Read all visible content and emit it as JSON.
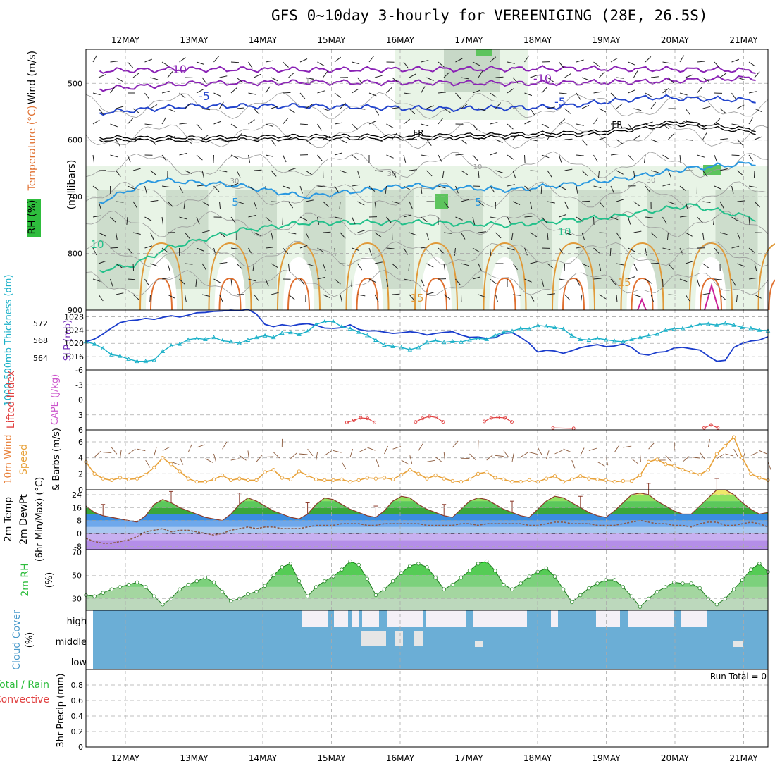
{
  "title": "GFS 0~10day 3-hourly for VEREENIGING (28E, 26.5S)",
  "dates": [
    "12MAY",
    "13MAY",
    "14MAY",
    "15MAY",
    "16MAY",
    "17MAY",
    "18MAY",
    "19MAY",
    "20MAY",
    "21MAY"
  ],
  "colors": {
    "grid": "#aaaaaa",
    "temp": "#e8803a",
    "rh": "#2ebd3d",
    "wind": "#e8a23a",
    "cape": "#cc55cc",
    "lifted": "#e04040",
    "slp": "#7733bb",
    "thick": "#1ab0c8",
    "cloud": "#6baed6",
    "precip_total": "#2ebd3d",
    "precip_conv": "#e04040"
  },
  "chart_data": [
    {
      "panel": "upper-air",
      "type": "contour",
      "ylabels": {
        "wind": "Wind (m/s)",
        "temp": "Temperature (°C)",
        "rh": "RH (%)",
        "axis": "(millibars)"
      },
      "ylim": [
        900,
        450
      ],
      "ticks": [
        900,
        800,
        700,
        600,
        500
      ],
      "isotherms": [
        {
          "label": "-10",
          "color": "#8a22b5",
          "anchors": [
            [
              0,
              478
            ],
            [
              1.3,
              475
            ],
            [
              3,
              476
            ],
            [
              5,
              475
            ],
            [
              7,
              474
            ],
            [
              9,
              476
            ],
            [
              9.6,
              478
            ]
          ]
        },
        {
          "label": "-10",
          "color": "#8a22b5",
          "anchors": [
            [
              0,
              510
            ],
            [
              1.3,
              500
            ],
            [
              3,
              498
            ],
            [
              5,
              499
            ],
            [
              6.2,
              500
            ],
            [
              8,
              497
            ],
            [
              9.6,
              490
            ]
          ]
        },
        {
          "label": "-5",
          "color": "#2244cc",
          "anchors": [
            [
              0,
              552
            ],
            [
              1.3,
              540
            ],
            [
              3,
              540
            ],
            [
              5,
              545
            ],
            [
              6.6,
              542
            ],
            [
              8,
              525
            ],
            [
              9.6,
              530
            ]
          ]
        },
        {
          "label": "FR",
          "color": "#000000",
          "anchors": [
            [
              0,
              598
            ],
            [
              1.5,
              598
            ],
            [
              3,
              595
            ],
            [
              4.5,
              595
            ],
            [
              6,
              592
            ],
            [
              7.2,
              588
            ],
            [
              8.4,
              570
            ],
            [
              9.6,
              585
            ]
          ]
        },
        {
          "label": "5",
          "color": "#2a98e0",
          "anchors": [
            [
              0,
              710
            ],
            [
              0.8,
              670
            ],
            [
              2,
              680
            ],
            [
              3,
              700
            ],
            [
              4.5,
              680
            ],
            [
              6,
              688
            ],
            [
              7.5,
              670
            ],
            [
              8.6,
              650
            ],
            [
              9.6,
              640
            ]
          ]
        },
        {
          "label": "10",
          "color": "#22c08a",
          "anchors": [
            [
              0,
              830
            ],
            [
              0.5,
              820
            ],
            [
              1,
              790
            ],
            [
              2,
              760
            ],
            [
              3,
              746
            ],
            [
              4.5,
              745
            ],
            [
              6,
              750
            ],
            [
              7.5,
              735
            ],
            [
              8.6,
              715
            ],
            [
              9.6,
              740
            ]
          ]
        }
      ],
      "labels": [
        "-10",
        "-10",
        "-5",
        "-5",
        "FR",
        "FR",
        "5",
        "5",
        "10",
        "10",
        "15",
        "15",
        "10",
        "30",
        "30",
        "10",
        "30",
        "10"
      ]
    },
    {
      "panel": "slp-thickness",
      "type": "line",
      "ylabels": {
        "left": "1000-500mb Thickness (dm)",
        "right": "SLP (mb)"
      },
      "thickness_ticks": [
        564,
        568,
        572
      ],
      "slp_ticks": [
        1016,
        1020,
        1024,
        1028
      ],
      "slp_ylim": [
        1012,
        1030
      ],
      "slp": [
        1020.5,
        1021.3,
        1022.8,
        1024.6,
        1026.2,
        1026.8,
        1027.0,
        1027.5,
        1027.2,
        1027.8,
        1028.3,
        1027.9,
        1028.5,
        1029.2,
        1029.3,
        1029.6,
        1029.7,
        1030.0,
        1029.8,
        1030.2,
        1028.8,
        1025.7,
        1025.0,
        1025.6,
        1025.2,
        1025.7,
        1025.9,
        1025.4,
        1024.6,
        1024.5,
        1024.7,
        1025.6,
        1024.2,
        1023.7,
        1023.8,
        1023.4,
        1023.0,
        1023.2,
        1023.5,
        1023.2,
        1022.5,
        1023.0,
        1023.3,
        1023.5,
        1022.5,
        1021.8,
        1021.9,
        1021.5,
        1021.7,
        1023.0,
        1023.2,
        1021.8,
        1020.0,
        1017.4,
        1017.9,
        1017.7,
        1017.0,
        1017.8,
        1018.7,
        1019.2,
        1019.6,
        1019.0,
        1019.2,
        1019.8,
        1018.8,
        1016.8,
        1016.5,
        1017.3,
        1017.5,
        1018.6,
        1018.8,
        1018.4,
        1018.0,
        1016.2,
        1014.6,
        1014.9,
        1018.8,
        1020.0,
        1020.7,
        1021.0,
        1022.0
      ],
      "thickness": [
        1020.5,
        1019.8,
        1018.5,
        1016.6,
        1016.2,
        1015.3,
        1014.6,
        1014.6,
        1015.0,
        1017.6,
        1019.3,
        1019.8,
        1021.1,
        1021.5,
        1021.2,
        1021.8,
        1020.8,
        1020.5,
        1020.0,
        1021.0,
        1021.8,
        1022.3,
        1021.8,
        1023.1,
        1023.3,
        1022.7,
        1023.6,
        1025.7,
        1026.5,
        1026.6,
        1025.0,
        1024.4,
        1023.4,
        1022.4,
        1021.0,
        1019.5,
        1019.1,
        1018.8,
        1018.1,
        1018.8,
        1020.3,
        1020.8,
        1020.3,
        1020.6,
        1020.4,
        1021.1,
        1021.5,
        1021.2,
        1022.4,
        1023.4,
        1023.7,
        1024.5,
        1024.3,
        1025.4,
        1025.1,
        1024.8,
        1024.3,
        1022.3,
        1021.2,
        1021.0,
        1021.5,
        1021.1,
        1020.7,
        1020.5,
        1021.2,
        1021.8,
        1022.3,
        1022.8,
        1024.0,
        1024.4,
        1024.5,
        1025.0,
        1025.7,
        1025.8,
        1025.5,
        1026.0,
        1025.5,
        1024.8,
        1024.5,
        1024.0,
        1023.8
      ]
    },
    {
      "panel": "cape-lifted",
      "type": "line",
      "ylabels": {
        "left": "Lifted Index",
        "right": "CAPE (J/kg)"
      },
      "ticks": [
        "-6",
        "-3",
        "0",
        "3",
        "6"
      ],
      "ylim": [
        -6,
        6
      ],
      "lifted_segments": [
        {
          "x": [
            3.6,
            3.7,
            3.8,
            3.9,
            4.0
          ],
          "y": [
            4.5,
            4.1,
            3.6,
            3.7,
            4.5
          ]
        },
        {
          "x": [
            4.6,
            4.7,
            4.8,
            4.9,
            5.0
          ],
          "y": [
            4.4,
            3.7,
            3.3,
            3.5,
            4.4
          ]
        },
        {
          "x": [
            5.6,
            5.7,
            5.8,
            5.9,
            6.0
          ],
          "y": [
            4.3,
            3.6,
            3.5,
            3.6,
            4.4
          ]
        },
        {
          "x": [
            6.6,
            6.9
          ],
          "y": [
            5.6,
            5.7
          ]
        },
        {
          "x": [
            8.8,
            8.9,
            9.0
          ],
          "y": [
            5.6,
            5.0,
            5.6
          ]
        }
      ]
    },
    {
      "panel": "wind10m",
      "type": "line",
      "ylabels": {
        "left": "10m Wind",
        "mid": "Speed",
        "right": "& Barbs (m/s)"
      },
      "ticks": [
        0,
        2,
        4,
        6
      ],
      "ylim": [
        0,
        7.5
      ],
      "speed": [
        3.5,
        2.0,
        1.4,
        1.2,
        1.5,
        1.3,
        1.4,
        1.9,
        2.8,
        4.0,
        3.2,
        2.3,
        1.4,
        1.0,
        1.0,
        1.3,
        1.8,
        1.2,
        1.4,
        1.2,
        1.2,
        2.2,
        2.5,
        1.5,
        1.3,
        2.3,
        1.8,
        1.3,
        1.2,
        1.2,
        1.3,
        1.0,
        1.2,
        1.5,
        1.4,
        1.5,
        1.3,
        1.9,
        2.5,
        2.0,
        1.4,
        1.8,
        1.4,
        1.1,
        1.0,
        1.3,
        2.0,
        2.2,
        1.5,
        1.3,
        1.0,
        1.0,
        1.2,
        1.0,
        1.4,
        1.7,
        1.0,
        1.3,
        1.7,
        1.4,
        1.3,
        1.2,
        1.0,
        1.1,
        1.1,
        1.8,
        3.5,
        3.8,
        3.2,
        3.0,
        2.5,
        2.2,
        1.9,
        2.5,
        4.5,
        5.5,
        6.6,
        4.0,
        2.0,
        1.5,
        1.2
      ]
    },
    {
      "panel": "temperature",
      "type": "area",
      "ylabels": {
        "left": "2m Temp",
        "mid": "2m DewPt",
        "right": "(6hr Min/Max) (°C)"
      },
      "ticks": [
        -8,
        0,
        8,
        16,
        24
      ],
      "ylim": [
        -10,
        27
      ],
      "temp": [
        17,
        13,
        11,
        10,
        9,
        8,
        7,
        11,
        18,
        21,
        19,
        16,
        14,
        12,
        10,
        9,
        8,
        12,
        18,
        22,
        20,
        17,
        14,
        12,
        10,
        9,
        12,
        18,
        22,
        21,
        18,
        15,
        13,
        11,
        10,
        14,
        20,
        23,
        22,
        18,
        15,
        13,
        11,
        10,
        15,
        20,
        22,
        21,
        18,
        15,
        13,
        11,
        10,
        15,
        20,
        23,
        22,
        19,
        16,
        13,
        11,
        10,
        14,
        19,
        24,
        25,
        24,
        20,
        17,
        14,
        12,
        12,
        17,
        22,
        27,
        27,
        24,
        19,
        15,
        12,
        13
      ],
      "dewpt": [
        -3,
        -5,
        -6,
        -6,
        -5,
        -4,
        -2,
        1,
        2,
        3,
        1,
        2,
        2,
        1,
        0,
        -1,
        0,
        2,
        3,
        4,
        3,
        4,
        4,
        3,
        3,
        3,
        4,
        5,
        5,
        5,
        6,
        6,
        6,
        5,
        5,
        6,
        6,
        6,
        6,
        6,
        5,
        5,
        5,
        5,
        6,
        6,
        5,
        6,
        6,
        6,
        6,
        6,
        5,
        5,
        6,
        7,
        7,
        6,
        6,
        6,
        5,
        5,
        5,
        6,
        7,
        8,
        7,
        6,
        6,
        5,
        5,
        4,
        6,
        7,
        7,
        5,
        5,
        6,
        7,
        6,
        4
      ]
    },
    {
      "panel": "rh",
      "type": "area",
      "ylabels": {
        "left": "2m RH",
        "right": "(%)"
      },
      "ticks": [
        30,
        50,
        70
      ],
      "ylim": [
        20,
        72
      ],
      "rh": [
        33,
        32,
        35,
        38,
        40,
        42,
        44,
        40,
        32,
        25,
        30,
        38,
        42,
        45,
        48,
        44,
        36,
        28,
        30,
        34,
        36,
        41,
        50,
        57,
        60,
        45,
        32,
        40,
        45,
        49,
        55,
        62,
        59,
        47,
        33,
        38,
        45,
        52,
        58,
        60,
        57,
        48,
        38,
        42,
        48,
        54,
        60,
        62,
        54,
        42,
        38,
        43,
        49,
        53,
        56,
        49,
        38,
        27,
        33,
        39,
        43,
        46,
        46,
        40,
        32,
        23,
        30,
        36,
        40,
        44,
        43,
        43,
        39,
        30,
        25,
        30,
        38,
        46,
        55,
        60,
        53
      ]
    },
    {
      "panel": "cloud",
      "type": "heatmap",
      "ylabels": {
        "left": "Cloud Cover",
        "right": "(%)"
      },
      "levels": [
        "high",
        "middle",
        "low"
      ]
    },
    {
      "panel": "precip",
      "type": "bar",
      "ylabels": {
        "left": "3hr Precip (mm)",
        "total": "Total / Rain",
        "conv": "Convective"
      },
      "ticks": [
        "0",
        "0.2",
        "0.4",
        "0.6",
        "0.8"
      ],
      "ylim": [
        0,
        1
      ],
      "run_total": "Run Total = 0",
      "values": []
    }
  ]
}
